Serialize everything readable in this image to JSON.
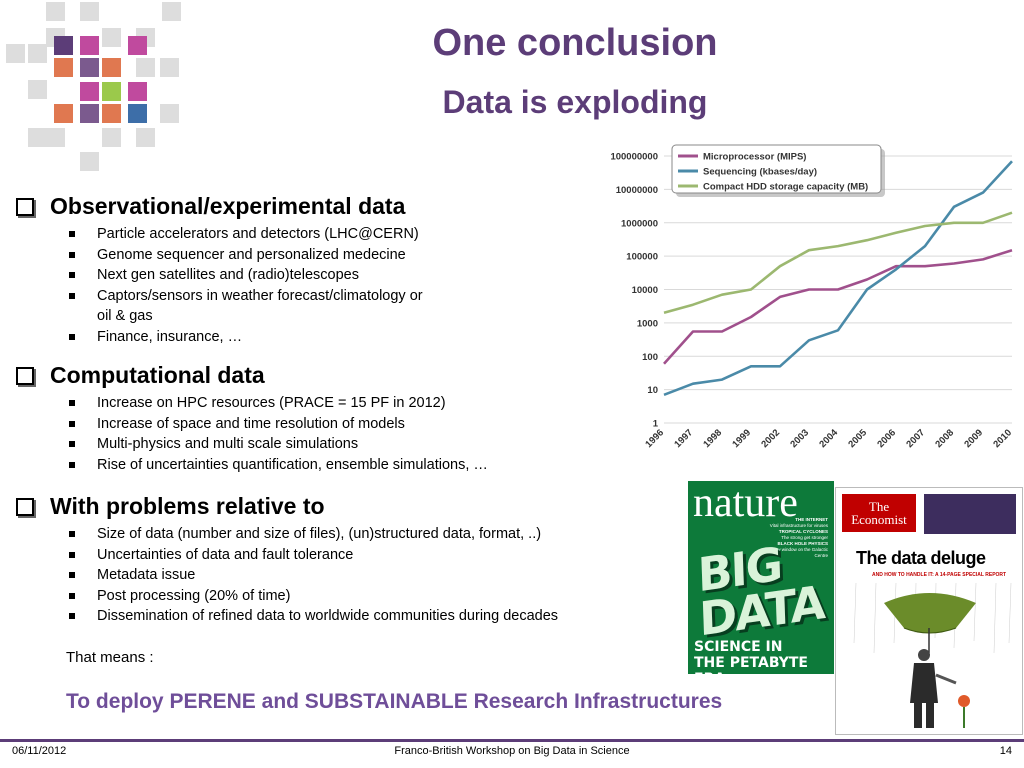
{
  "header": {
    "title": "One conclusion",
    "subtitle": "Data is exploding"
  },
  "sections": [
    {
      "heading": "Observational/experimental data",
      "items": [
        "Particle accelerators and detectors (LHC@CERN)",
        "Genome sequencer and personalized medecine",
        "Next gen satellites and (radio)telescopes",
        "Captors/sensors in weather forecast/climatology or",
        "oil & gas",
        "Finance, insurance, …"
      ]
    },
    {
      "heading": "Computational data",
      "items": [
        "Increase on HPC resources (PRACE =  15 PF in 2012)",
        "Increase of space and time resolution of models",
        "Multi-physics and multi scale simulations",
        "Rise of uncertainties quantification, ensemble simulations, …"
      ]
    },
    {
      "heading": "With problems relative to",
      "items": [
        "Size of data (number and size of files), (un)structured data, format, ..)",
        "Uncertainties of data and fault tolerance",
        "Metadata issue",
        "Post processing (20% of time)",
        "Dissemination of refined data to worldwide communities during decades"
      ]
    }
  ],
  "conclusion": {
    "that_means": "That means :",
    "deploy": "To deploy PERENE and SUBSTAINABLE Research Infrastructures"
  },
  "footer": {
    "date": "06/11/2012",
    "event": "Franco-British Workshop on Big Data in Science",
    "page": "14"
  },
  "logo_colors": [
    "#5c3d78",
    "#c04a9e",
    "#e07850",
    "#7b5a8e",
    "#9bc94b",
    "#3d6ea8",
    "#dddddd"
  ],
  "chart_data": {
    "type": "line",
    "scale": "log",
    "categories": [
      "1996",
      "1997",
      "1998",
      "1999",
      "2002",
      "2003",
      "2004",
      "2005",
      "2006",
      "2007",
      "2008",
      "2009",
      "2010"
    ],
    "ytick_labels": [
      "1",
      "10",
      "100",
      "1000",
      "10000",
      "100000",
      "1000000",
      "10000000",
      "100000000"
    ],
    "ylim": [
      1,
      100000000
    ],
    "grid": true,
    "legend_position": "top-left",
    "series": [
      {
        "name": "Microprocessor (MIPS)",
        "color": "#a0508c",
        "values": [
          60,
          550,
          550,
          1500,
          6000,
          10000,
          10000,
          20000,
          50000,
          50000,
          60000,
          80000,
          150000
        ]
      },
      {
        "name": "Sequencing (kbases/day)",
        "color": "#4a8aa8",
        "values": [
          7,
          15,
          20,
          50,
          50,
          300,
          600,
          10000,
          40000,
          200000,
          3000000,
          8000000,
          70000000
        ]
      },
      {
        "name": "Compact HDD storage capacity (MB)",
        "color": "#9cb870",
        "values": [
          2000,
          3500,
          7000,
          10000,
          50000,
          150000,
          200000,
          300000,
          500000,
          800000,
          1000000,
          1000000,
          2000000
        ]
      }
    ]
  },
  "covers": {
    "nature": {
      "masthead": "nature",
      "big_text": "BIG DATA",
      "bottom_text": "SCIENCE IN THE PETABYTE ERA",
      "side_lines": [
        "THE INTERNET",
        "Vital infrastructure for viruses",
        "TROPICAL CYCLONES",
        "The strong get stronger",
        "BLACK HOLE PHYSICS",
        "A new window on the Galactic Centre"
      ],
      "color": "#0d7a3a"
    },
    "economist": {
      "logo": "The Economist",
      "headline": "The data deluge",
      "subline": "AND HOW TO HANDLE IT: A 14-PAGE SPECIAL REPORT",
      "logo_color": "#c00000"
    }
  }
}
